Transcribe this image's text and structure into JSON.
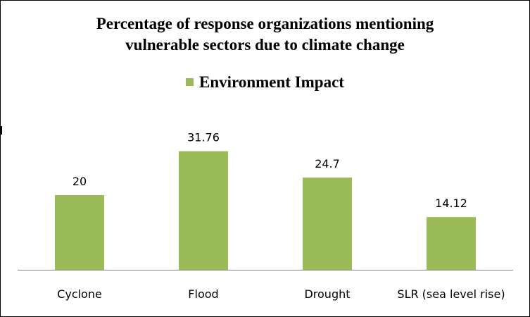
{
  "chart_data": {
    "type": "bar",
    "title_lines": [
      "Percentage of response organizations mentioning",
      "vulnerable sectors due to climate change"
    ],
    "categories": [
      "Cyclone",
      "Flood",
      "Drought",
      "SLR (sea level rise)"
    ],
    "series": [
      {
        "name": "Environment Impact",
        "values": [
          20,
          31.76,
          24.7,
          14.12
        ],
        "data_labels": [
          "20",
          "31.76",
          "24.7",
          "14.12"
        ],
        "color": "#9bbb59"
      }
    ],
    "ylim": [
      0,
      35
    ],
    "y_axis_visible": false,
    "grid": false,
    "legend_position": "top"
  }
}
